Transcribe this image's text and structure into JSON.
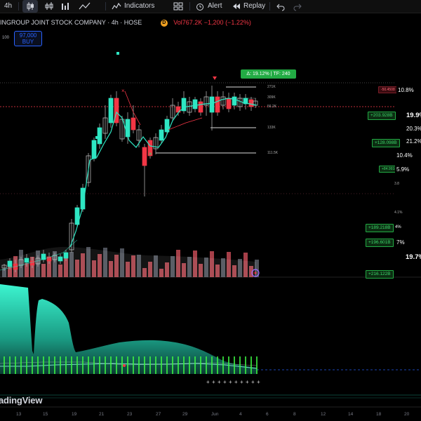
{
  "toolbar": {
    "interval": "4h",
    "indicators_label": "Indicators",
    "alert_label": "Alert",
    "replay_label": "Replay"
  },
  "info": {
    "title": "INGROUP JOINT STOCK COMPANY · 4h · HOSE",
    "badge": "D",
    "volume": "Vol767.2K −1,200 (−1.22%)"
  },
  "order": {
    "price": "97,000",
    "action": "BUY"
  },
  "scale_number": "100",
  "measure": {
    "label": "Δ: 19.12% | TF: 240"
  },
  "level_labels": {
    "l271": "271K",
    "l309": "309K",
    "l562": "56.2K",
    "l133": "133K",
    "l1115": "111.5K",
    "l_neg": "-50.4508"
  },
  "right_tags": [
    {
      "text": "+203.928B"
    },
    {
      "text": "+128.098B"
    },
    {
      "text": "+84.9918"
    },
    {
      "text": "+189.218B"
    },
    {
      "text": "+196.601B"
    },
    {
      "text": "+216.122B"
    }
  ],
  "right_pcts": [
    {
      "text": "10.8%"
    },
    {
      "text": "19.9%"
    },
    {
      "text": "20.3%"
    },
    {
      "text": "21.2%"
    },
    {
      "text": "10.4%"
    },
    {
      "text": "5.9%"
    },
    {
      "text": "4%"
    },
    {
      "text": "7%"
    },
    {
      "text": "19.7%"
    }
  ],
  "small_right": {
    "s1": "3.8",
    "s2": "4.1%"
  },
  "x_axis": [
    "13",
    "15",
    "19",
    "21",
    "23",
    "27",
    "29",
    "Jun",
    "4",
    "6",
    "8",
    "12",
    "14",
    "18",
    "20"
  ],
  "brand": "adingView",
  "colors": {
    "bull": "#2ee6c3",
    "bear": "#f23645",
    "accent": "#2962ff",
    "green_label": "#22ab44"
  }
}
